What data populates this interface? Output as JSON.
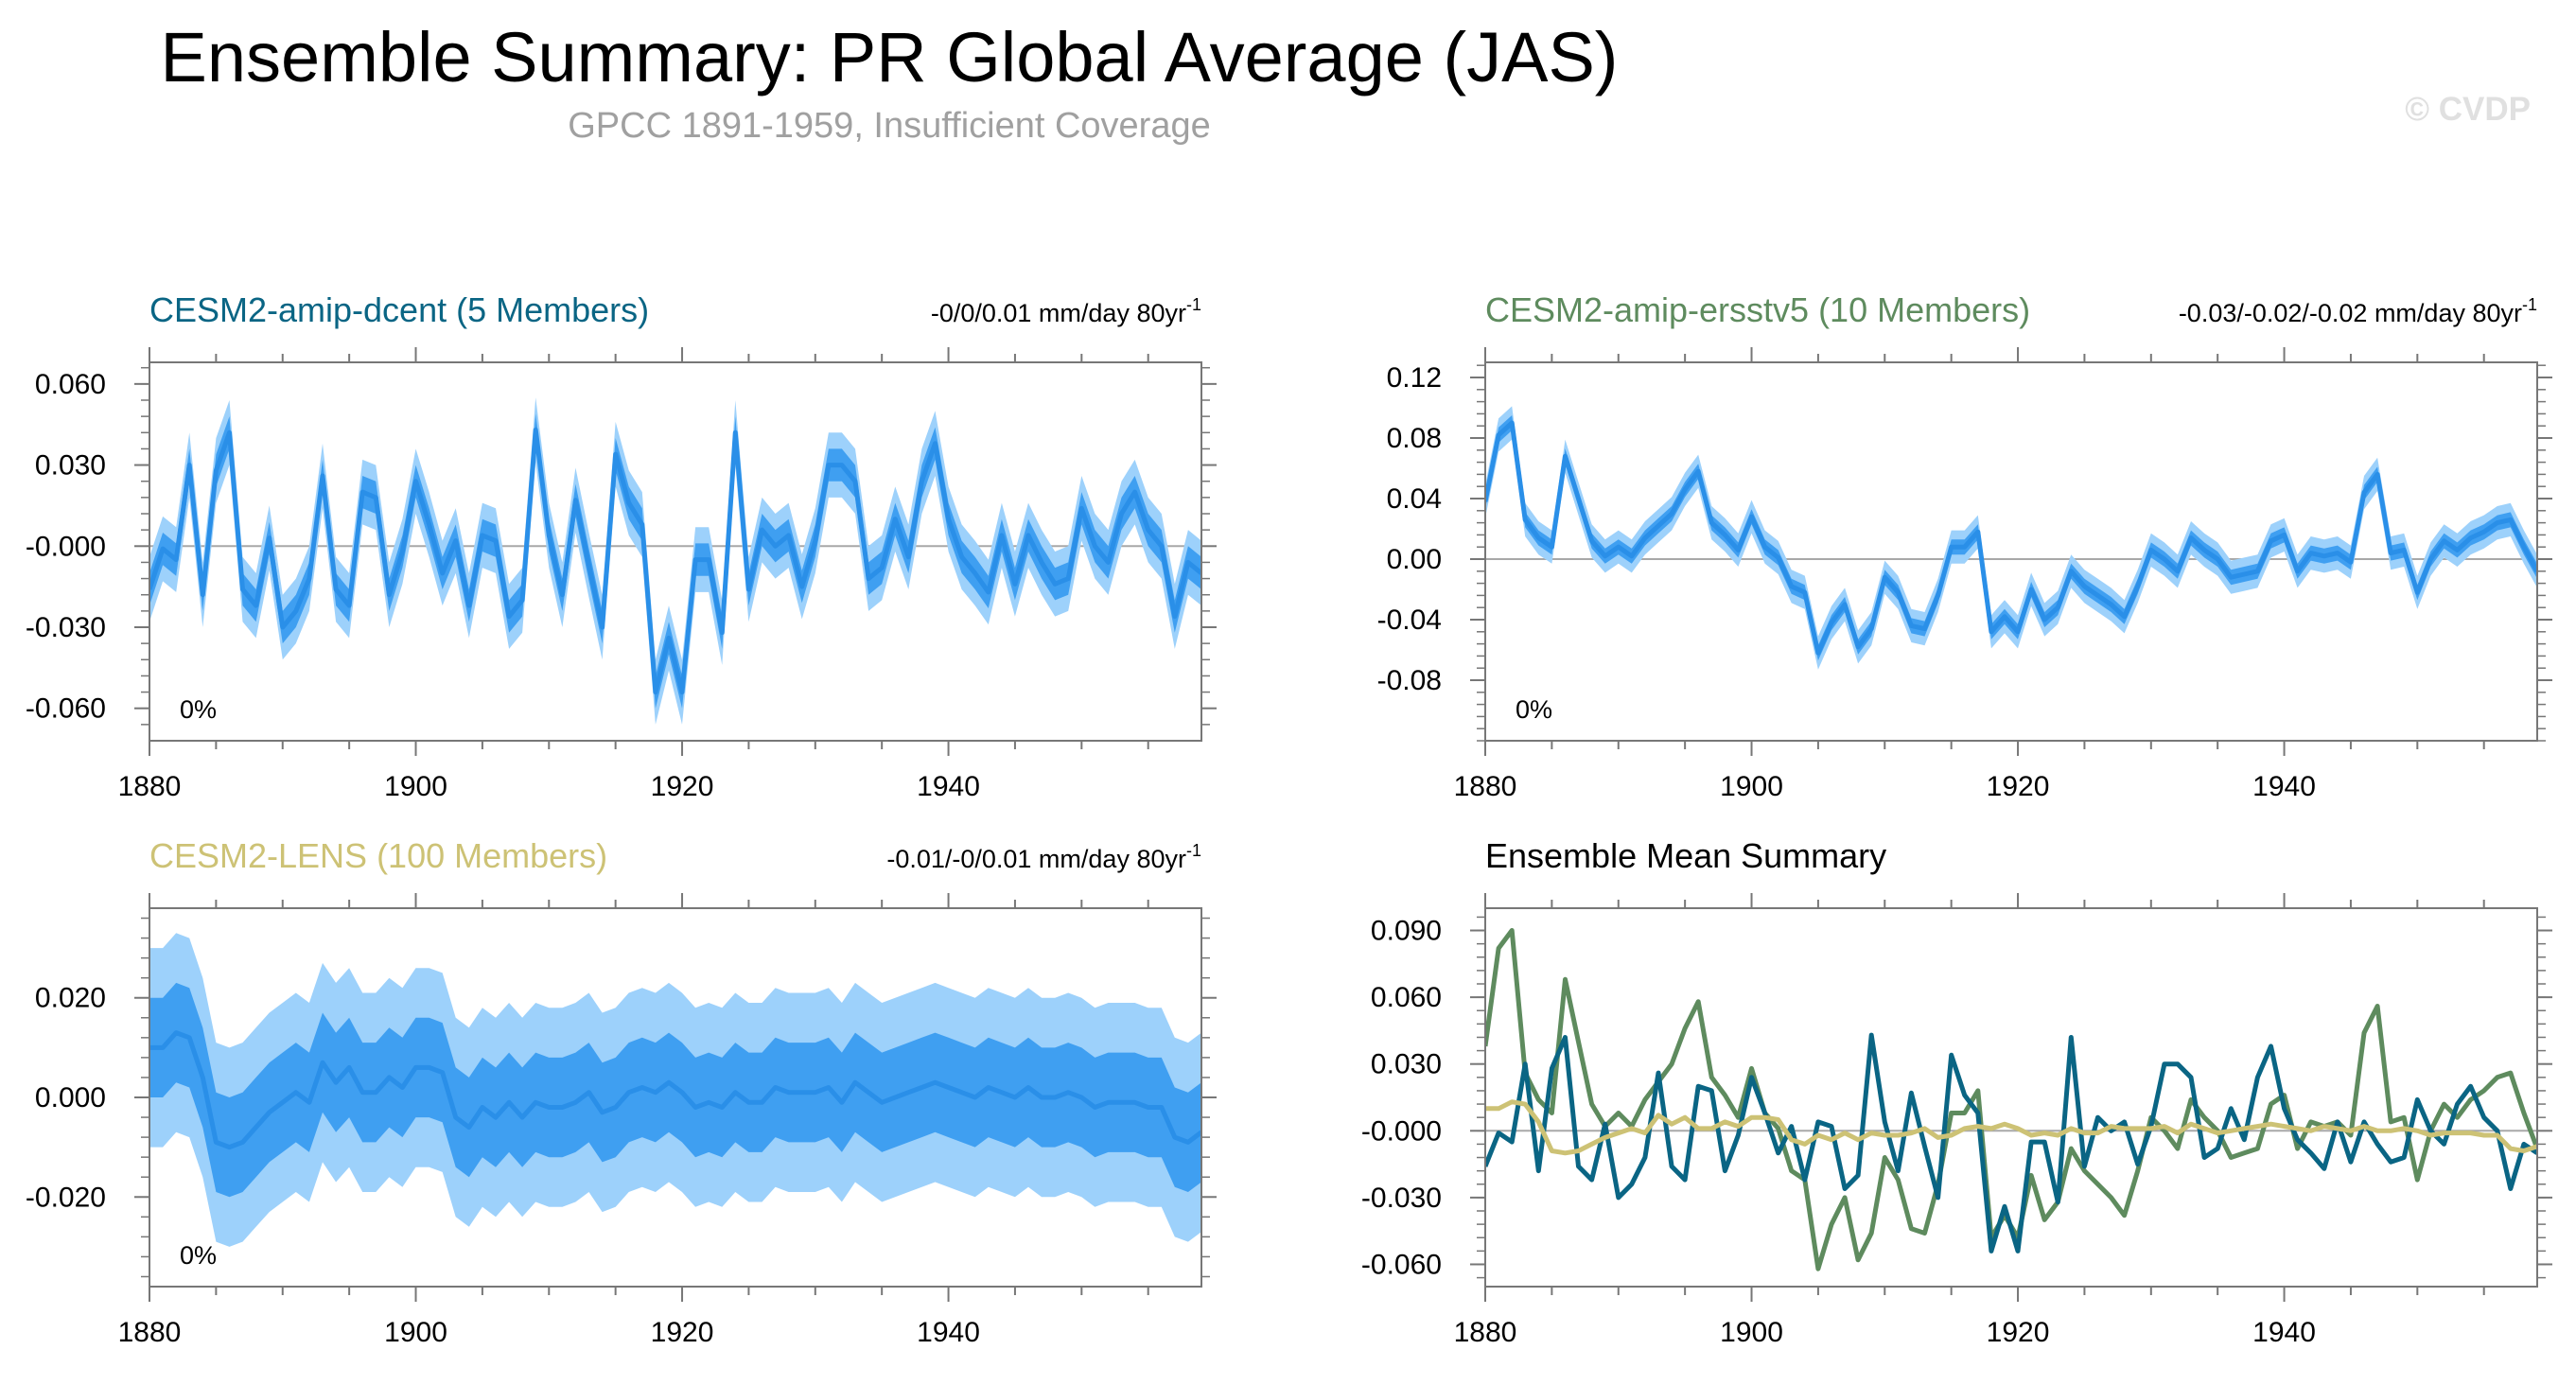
{
  "title": "Ensemble Summary: PR Global Average (JAS)",
  "subtitle": "GPCC 1891-1959, Insufficient Coverage",
  "watermark": "© CVDP",
  "colors": {
    "dcent": "#0a6584",
    "ersstv5": "#5e8b5e",
    "lens": "#cdc275",
    "shade_outer": "#9dd1fb",
    "shade_inner": "#3f9ff1",
    "mean_line": "#2a8fe8",
    "zero_line": "#a8a8a8",
    "axis": "#777777"
  },
  "chart_data": [
    {
      "id": "dcent",
      "type": "area",
      "title": "CESM2-amip-dcent (5 Members)",
      "trend": "-0/0/0.01 mm/day 80yr",
      "trend_sup": "-1",
      "percent": "0%",
      "xlim": [
        1880,
        1959
      ],
      "ylim": [
        -0.072,
        0.068
      ],
      "x_ticks": [
        "1880",
        "1900",
        "1920",
        "1940"
      ],
      "y_ticks": [
        {
          "v": 0.06,
          "label": "0.060"
        },
        {
          "v": 0.03,
          "label": "0.030"
        },
        {
          "v": 0.0,
          "label": "-0.000"
        },
        {
          "v": -0.03,
          "label": "-0.030"
        },
        {
          "v": -0.06,
          "label": "-0.060"
        }
      ],
      "x_start": 1880,
      "mean": [
        -0.016,
        -0.001,
        -0.005,
        0.03,
        -0.018,
        0.028,
        0.042,
        -0.016,
        -0.022,
        0.003,
        -0.03,
        -0.024,
        -0.012,
        0.026,
        -0.016,
        -0.022,
        0.02,
        0.018,
        -0.018,
        -0.002,
        0.024,
        0.008,
        -0.01,
        0.002,
        -0.022,
        0.004,
        0.002,
        -0.026,
        -0.02,
        0.043,
        0.004,
        -0.018,
        0.017,
        -0.007,
        -0.03,
        0.034,
        0.016,
        0.008,
        -0.054,
        -0.034,
        -0.054,
        -0.005,
        -0.005,
        -0.032,
        0.042,
        -0.016,
        0.006,
        0.0,
        0.004,
        -0.015,
        0.002,
        0.03,
        0.03,
        0.024,
        -0.012,
        -0.008,
        0.01,
        -0.004,
        0.024,
        0.038,
        0.01,
        -0.004,
        -0.01,
        -0.017,
        0.004,
        -0.014,
        0.004,
        -0.006,
        -0.014,
        -0.012,
        0.014,
        0.0,
        -0.006,
        0.012,
        0.02,
        0.006,
        0.0,
        -0.026,
        -0.006,
        -0.01
      ],
      "inner_hw": 0.006,
      "outer_hw": 0.012,
      "series": []
    },
    {
      "id": "ersstv5",
      "type": "area",
      "title": "CESM2-amip-ersstv5 (10 Members)",
      "trend": "-0.03/-0.02/-0.02 mm/day 80yr",
      "trend_sup": "-1",
      "percent": "0%",
      "xlim": [
        1880,
        1959
      ],
      "ylim": [
        -0.12,
        0.13
      ],
      "x_ticks": [
        "1880",
        "1900",
        "1920",
        "1940"
      ],
      "y_ticks": [
        {
          "v": 0.12,
          "label": "0.12"
        },
        {
          "v": 0.08,
          "label": "0.08"
        },
        {
          "v": 0.04,
          "label": "0.04"
        },
        {
          "v": 0.0,
          "label": "0.00"
        },
        {
          "v": -0.04,
          "label": "-0.04"
        },
        {
          "v": -0.08,
          "label": "-0.08"
        }
      ],
      "x_start": 1880,
      "mean": [
        0.038,
        0.082,
        0.09,
        0.026,
        0.014,
        0.008,
        0.068,
        0.04,
        0.012,
        0.002,
        0.008,
        0.002,
        0.014,
        0.022,
        0.03,
        0.046,
        0.058,
        0.024,
        0.016,
        0.006,
        0.028,
        0.008,
        0.001,
        -0.018,
        -0.022,
        -0.062,
        -0.042,
        -0.03,
        -0.058,
        -0.046,
        -0.012,
        -0.022,
        -0.044,
        -0.046,
        -0.024,
        0.008,
        0.008,
        0.018,
        -0.048,
        -0.038,
        -0.048,
        -0.02,
        -0.04,
        -0.032,
        -0.008,
        -0.018,
        -0.024,
        -0.03,
        -0.038,
        -0.018,
        0.006,
        0.0,
        -0.008,
        0.014,
        0.006,
        0.0,
        -0.012,
        -0.01,
        -0.008,
        0.012,
        0.016,
        -0.008,
        0.004,
        0.002,
        0.004,
        -0.002,
        0.044,
        0.056,
        0.004,
        0.006,
        -0.022,
        0.0,
        0.012,
        0.006,
        0.014,
        0.018,
        0.024,
        0.026,
        0.008,
        -0.008
      ],
      "inner_hw": 0.005,
      "outer_hw": 0.011,
      "series": []
    },
    {
      "id": "lens",
      "type": "area",
      "title": "CESM2-LENS (100 Members)",
      "trend": "-0.01/-0/0.01 mm/day 80yr",
      "trend_sup": "-1",
      "percent": "0%",
      "xlim": [
        1880,
        1959
      ],
      "ylim": [
        -0.038,
        0.038
      ],
      "x_ticks": [
        "1880",
        "1900",
        "1920",
        "1940"
      ],
      "y_ticks": [
        {
          "v": 0.02,
          "label": "0.020"
        },
        {
          "v": 0.0,
          "label": "0.000"
        },
        {
          "v": -0.02,
          "label": "-0.020"
        }
      ],
      "x_start": 1880,
      "mean": [
        0.01,
        0.01,
        0.013,
        0.012,
        0.004,
        -0.009,
        -0.01,
        -0.009,
        -0.006,
        -0.003,
        -0.001,
        0.001,
        -0.001,
        0.007,
        0.003,
        0.006,
        0.001,
        0.001,
        0.004,
        0.002,
        0.006,
        0.006,
        0.005,
        -0.004,
        -0.006,
        -0.002,
        -0.004,
        -0.001,
        -0.004,
        -0.001,
        -0.002,
        -0.002,
        -0.001,
        0.001,
        -0.003,
        -0.002,
        0.001,
        0.002,
        0.001,
        0.003,
        0.001,
        -0.002,
        -0.001,
        -0.002,
        0.001,
        -0.001,
        -0.001,
        0.002,
        0.001,
        0.001,
        0.001,
        0.002,
        -0.001,
        0.003,
        0.001,
        -0.001,
        0.0,
        0.001,
        0.002,
        0.003,
        0.002,
        0.001,
        0.0,
        0.002,
        0.001,
        0.0,
        0.002,
        0.0,
        0.0,
        0.001,
        0.0,
        -0.002,
        -0.001,
        -0.001,
        -0.001,
        -0.002,
        -0.002,
        -0.008,
        -0.009,
        -0.007
      ],
      "inner_hw": 0.01,
      "outer_hw": 0.02,
      "series": []
    },
    {
      "id": "summary",
      "type": "line",
      "title": "Ensemble Mean Summary",
      "trend": "",
      "trend_sup": "",
      "percent": "",
      "xlim": [
        1880,
        1959
      ],
      "ylim": [
        -0.07,
        0.1
      ],
      "x_ticks": [
        "1880",
        "1900",
        "1920",
        "1940"
      ],
      "y_ticks": [
        {
          "v": 0.09,
          "label": "0.090"
        },
        {
          "v": 0.06,
          "label": "0.060"
        },
        {
          "v": 0.03,
          "label": "0.030"
        },
        {
          "v": 0.0,
          "label": "-0.000"
        },
        {
          "v": -0.03,
          "label": "-0.030"
        },
        {
          "v": -0.06,
          "label": "-0.060"
        }
      ],
      "x_start": 1880,
      "mean": [],
      "inner_hw": 0,
      "outer_hw": 0,
      "series": [
        {
          "color_key": "ersstv5",
          "values": [
            0.038,
            0.082,
            0.09,
            0.026,
            0.014,
            0.008,
            0.068,
            0.04,
            0.012,
            0.002,
            0.008,
            0.002,
            0.014,
            0.022,
            0.03,
            0.046,
            0.058,
            0.024,
            0.016,
            0.006,
            0.028,
            0.008,
            0.001,
            -0.018,
            -0.022,
            -0.062,
            -0.042,
            -0.03,
            -0.058,
            -0.046,
            -0.012,
            -0.022,
            -0.044,
            -0.046,
            -0.024,
            0.008,
            0.008,
            0.018,
            -0.048,
            -0.038,
            -0.048,
            -0.02,
            -0.04,
            -0.032,
            -0.008,
            -0.018,
            -0.024,
            -0.03,
            -0.038,
            -0.018,
            0.006,
            0.0,
            -0.008,
            0.014,
            0.006,
            0.0,
            -0.012,
            -0.01,
            -0.008,
            0.012,
            0.016,
            -0.008,
            0.004,
            0.002,
            0.004,
            -0.002,
            0.044,
            0.056,
            0.004,
            0.006,
            -0.022,
            0.0,
            0.012,
            0.006,
            0.014,
            0.018,
            0.024,
            0.026,
            0.008,
            -0.008
          ]
        },
        {
          "color_key": "dcent",
          "values": [
            -0.016,
            -0.001,
            -0.005,
            0.03,
            -0.018,
            0.028,
            0.042,
            -0.016,
            -0.022,
            0.003,
            -0.03,
            -0.024,
            -0.012,
            0.026,
            -0.016,
            -0.022,
            0.02,
            0.018,
            -0.018,
            -0.002,
            0.024,
            0.008,
            -0.01,
            0.002,
            -0.022,
            0.004,
            0.002,
            -0.026,
            -0.02,
            0.043,
            0.004,
            -0.018,
            0.017,
            -0.007,
            -0.03,
            0.034,
            0.016,
            0.008,
            -0.054,
            -0.034,
            -0.054,
            -0.005,
            -0.005,
            -0.032,
            0.042,
            -0.016,
            0.006,
            0.0,
            0.004,
            -0.015,
            0.002,
            0.03,
            0.03,
            0.024,
            -0.012,
            -0.008,
            0.01,
            -0.004,
            0.024,
            0.038,
            0.01,
            -0.004,
            -0.01,
            -0.017,
            0.004,
            -0.014,
            0.004,
            -0.006,
            -0.014,
            -0.012,
            0.014,
            0.0,
            -0.006,
            0.012,
            0.02,
            0.006,
            0.0,
            -0.026,
            -0.006,
            -0.01
          ]
        },
        {
          "color_key": "lens",
          "values": [
            0.01,
            0.01,
            0.013,
            0.012,
            0.004,
            -0.009,
            -0.01,
            -0.009,
            -0.006,
            -0.003,
            -0.001,
            0.001,
            -0.001,
            0.007,
            0.003,
            0.006,
            0.001,
            0.001,
            0.004,
            0.002,
            0.006,
            0.006,
            0.005,
            -0.004,
            -0.006,
            -0.002,
            -0.004,
            -0.001,
            -0.004,
            -0.001,
            -0.002,
            -0.002,
            -0.001,
            0.001,
            -0.003,
            -0.002,
            0.001,
            0.002,
            0.001,
            0.003,
            0.001,
            -0.002,
            -0.001,
            -0.002,
            0.001,
            -0.001,
            -0.001,
            0.002,
            0.001,
            0.001,
            0.001,
            0.002,
            -0.001,
            0.003,
            0.001,
            -0.001,
            0.0,
            0.001,
            0.002,
            0.003,
            0.002,
            0.001,
            0.0,
            0.002,
            0.001,
            0.0,
            0.002,
            0.0,
            0.0,
            0.001,
            0.0,
            -0.002,
            -0.001,
            -0.001,
            -0.001,
            -0.002,
            -0.002,
            -0.008,
            -0.009,
            -0.007
          ]
        }
      ]
    }
  ]
}
